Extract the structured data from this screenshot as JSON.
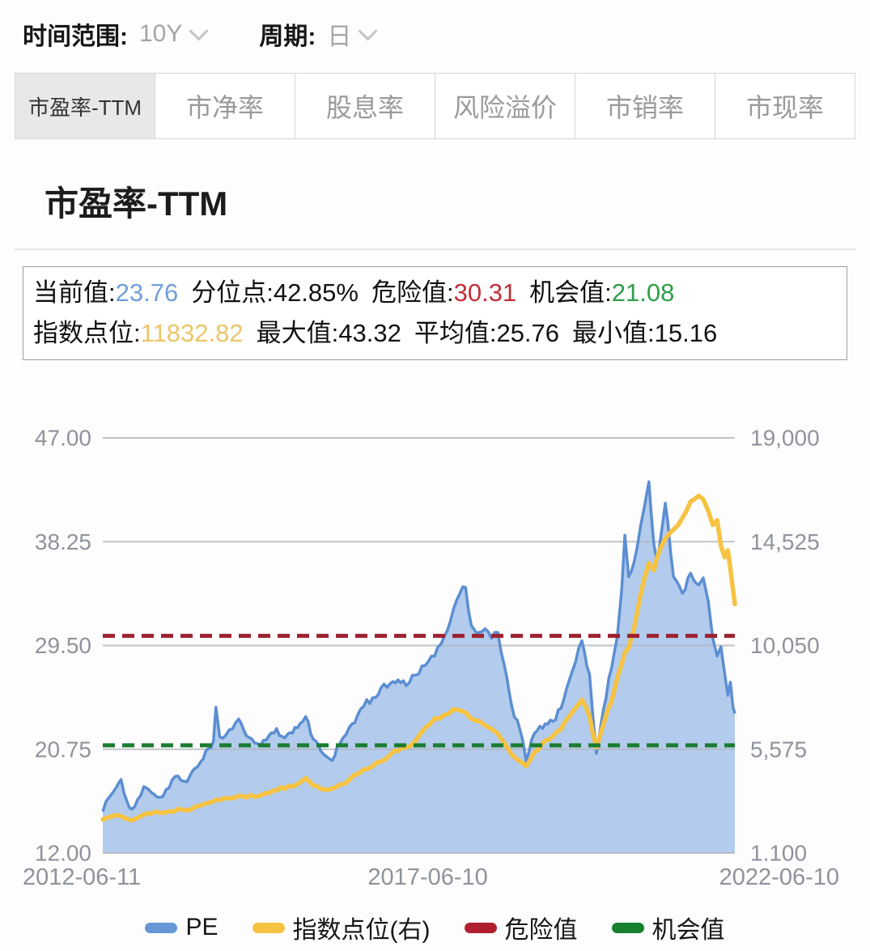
{
  "toolbar": {
    "time_range_label": "时间范围:",
    "time_range_value": "10Y",
    "period_label": "周期:",
    "period_value": "日"
  },
  "tabs": [
    {
      "label": "市盈率-TTM",
      "active": true
    },
    {
      "label": "市净率",
      "active": false
    },
    {
      "label": "股息率",
      "active": false
    },
    {
      "label": "风险溢价",
      "active": false
    },
    {
      "label": "市销率",
      "active": false
    },
    {
      "label": "市现率",
      "active": false
    }
  ],
  "section_title": "市盈率-TTM",
  "stats": {
    "rows": [
      [
        {
          "label": "当前值:",
          "value": "23.76",
          "color": "#6f9ed9"
        },
        {
          "label": "分位点:",
          "value": "42.85%",
          "color": "#111111"
        },
        {
          "label": "危险值:",
          "value": "30.31",
          "color": "#c22f38"
        },
        {
          "label": "机会值:",
          "value": "21.08",
          "color": "#2f9e47"
        }
      ],
      [
        {
          "label": "指数点位:",
          "value": "11832.82",
          "color": "#edc568"
        },
        {
          "label": "最大值:",
          "value": "43.32",
          "color": "#111111"
        },
        {
          "label": "平均值:",
          "value": "25.76",
          "color": "#111111"
        },
        {
          "label": "最小值:",
          "value": "15.16",
          "color": "#111111"
        }
      ]
    ]
  },
  "chart_data": {
    "type": "area",
    "title": "市盈率-TTM",
    "grid": true,
    "legend_position": "bottom",
    "x_axis": {
      "labels": [
        "2012-06-11",
        "2017-06-10",
        "2022-06-10"
      ],
      "min": 2012.45,
      "max": 2022.45
    },
    "left_axis": {
      "name": "PE",
      "ticks": [
        "47.00",
        "38.25",
        "29.50",
        "20.75",
        "12.00"
      ],
      "min": 12,
      "max": 47
    },
    "right_axis": {
      "name": "指数点位",
      "ticks": [
        "19,000",
        "14,525",
        "10,050",
        "5,575",
        "1,100"
      ],
      "min": 1100,
      "max": 19000
    },
    "marklines": [
      {
        "name": "危险值",
        "value": 30.31,
        "color": "#9e2231",
        "style": "dashed"
      },
      {
        "name": "机会值",
        "value": 21.08,
        "color": "#1b7c31",
        "style": "dashed"
      }
    ],
    "x": [
      2012.45,
      2012.55,
      2012.66,
      2012.74,
      2012.83,
      2012.91,
      2013.0,
      2013.1,
      2013.22,
      2013.35,
      2013.5,
      2013.64,
      2013.78,
      2013.9,
      2014.0,
      2014.12,
      2014.2,
      2014.24,
      2014.3,
      2014.45,
      2014.6,
      2014.72,
      2014.85,
      2014.95,
      2015.08,
      2015.2,
      2015.33,
      2015.45,
      2015.57,
      2015.66,
      2015.78,
      2015.9,
      2016.0,
      2016.08,
      2016.2,
      2016.35,
      2016.48,
      2016.58,
      2016.72,
      2016.85,
      2017.0,
      2017.12,
      2017.25,
      2017.4,
      2017.55,
      2017.7,
      2017.85,
      2018.0,
      2018.1,
      2018.19,
      2018.28,
      2018.4,
      2018.5,
      2018.6,
      2018.7,
      2018.8,
      2018.92,
      2019.05,
      2019.15,
      2019.28,
      2019.45,
      2019.57,
      2019.7,
      2019.82,
      2019.93,
      2020.03,
      2020.15,
      2020.26,
      2020.37,
      2020.5,
      2020.59,
      2020.66,
      2020.71,
      2020.77,
      2020.86,
      2020.96,
      2021.02,
      2021.09,
      2021.17,
      2021.22,
      2021.35,
      2021.48,
      2021.62,
      2021.75,
      2021.88,
      2021.95,
      2022.03,
      2022.1,
      2022.17,
      2022.23,
      2022.29,
      2022.34,
      2022.38,
      2022.42,
      2022.45
    ],
    "series": [
      {
        "name": "PE",
        "type": "area",
        "axis": "left",
        "line_color": "#5c8ed2",
        "fill_color": "#adc8eb",
        "values": [
          15.5,
          16.7,
          17.5,
          18.2,
          16.4,
          15.7,
          16.5,
          17.6,
          17.1,
          16.7,
          17.5,
          18.5,
          18.0,
          19.1,
          19.7,
          20.8,
          21.4,
          24.3,
          21.8,
          22.4,
          23.3,
          21.9,
          21.3,
          21.1,
          21.9,
          22.5,
          21.7,
          22.1,
          22.9,
          23.5,
          21.6,
          20.6,
          20.1,
          19.8,
          21.2,
          22.6,
          23.6,
          24.4,
          25.1,
          25.9,
          26.3,
          26.6,
          26.1,
          27.0,
          27.8,
          28.6,
          30.2,
          32.6,
          33.9,
          34.4,
          31.2,
          30.6,
          30.9,
          30.1,
          30.6,
          27.9,
          24.4,
          22.4,
          19.7,
          22.1,
          22.9,
          23.1,
          24.2,
          26.4,
          28.1,
          29.9,
          27.1,
          20.4,
          24.1,
          27.6,
          30.2,
          34.2,
          38.8,
          35.3,
          36.6,
          39.6,
          41.2,
          43.3,
          38.0,
          36.6,
          41.5,
          35.3,
          33.9,
          35.6,
          34.6,
          35.2,
          33.2,
          30.1,
          28.6,
          29.4,
          27.1,
          25.3,
          26.4,
          24.3,
          23.76
        ]
      },
      {
        "name": "指数点位(右)",
        "type": "line",
        "axis": "right",
        "line_color": "#f6c242",
        "values": [
          2550,
          2650,
          2740,
          2690,
          2570,
          2510,
          2620,
          2760,
          2800,
          2840,
          2900,
          3000,
          2950,
          3080,
          3150,
          3260,
          3330,
          3400,
          3380,
          3460,
          3570,
          3500,
          3530,
          3580,
          3680,
          3800,
          3870,
          3960,
          4140,
          4330,
          4020,
          3870,
          3820,
          3880,
          4050,
          4250,
          4500,
          4700,
          4850,
          5050,
          5350,
          5500,
          5650,
          5950,
          6500,
          6900,
          7050,
          7300,
          7250,
          7150,
          6900,
          6800,
          6600,
          6450,
          6250,
          5850,
          5350,
          5050,
          4850,
          5450,
          5950,
          6150,
          6450,
          6950,
          7350,
          7700,
          7000,
          5650,
          6650,
          7650,
          8650,
          9250,
          9750,
          9950,
          10850,
          12250,
          12950,
          13600,
          13300,
          13850,
          14650,
          15050,
          15550,
          16250,
          16500,
          16350,
          15850,
          15250,
          15450,
          14350,
          13850,
          14150,
          13350,
          12450,
          11832.82
        ]
      }
    ],
    "legend": [
      {
        "name": "PE",
        "color": "#6597d5"
      },
      {
        "name": "指数点位(右)",
        "color": "#f6c242"
      },
      {
        "name": "危险值",
        "color": "#b01f2f"
      },
      {
        "name": "机会值",
        "color": "#16802f"
      }
    ]
  }
}
